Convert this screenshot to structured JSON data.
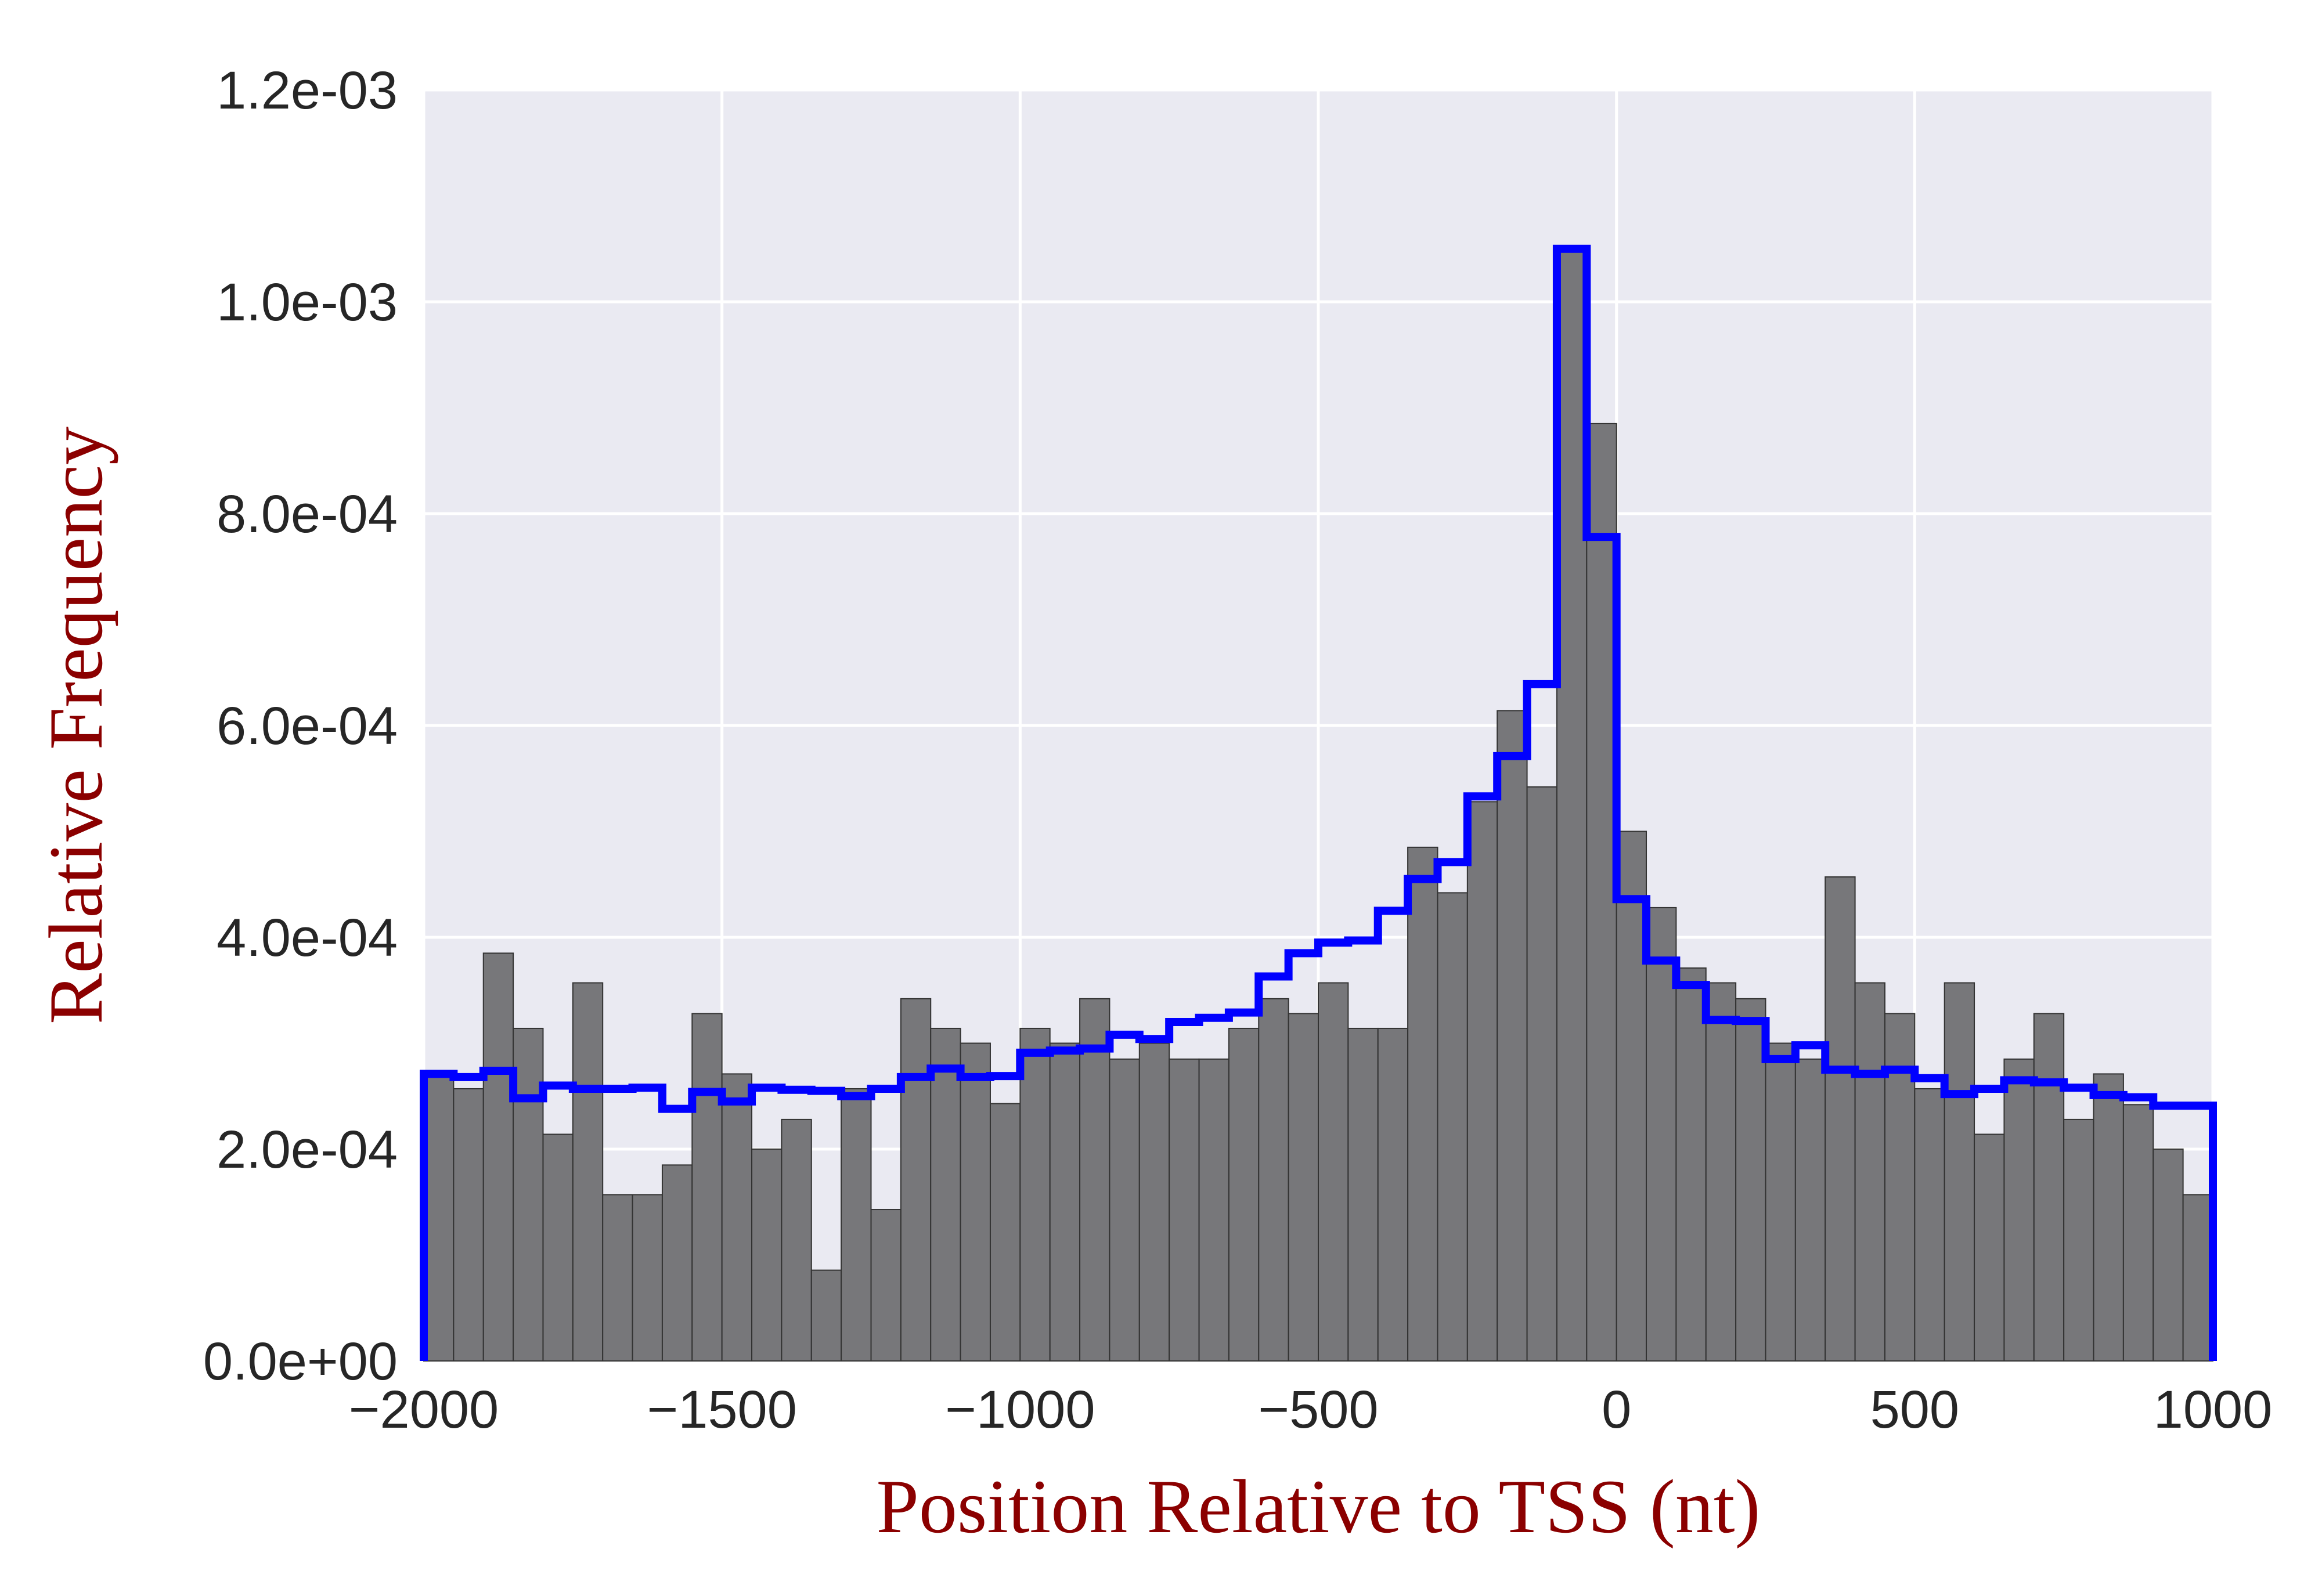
{
  "chart_data": {
    "type": "bar",
    "title": "",
    "xlabel": "Position Relative to TSS (nt)",
    "ylabel": "Relative Frequency",
    "xlim": [
      -2000,
      1000
    ],
    "ylim": [
      0,
      0.0012
    ],
    "grid": true,
    "x_ticks": [
      {
        "value": -2000,
        "label": "−2000"
      },
      {
        "value": -1500,
        "label": "−1500"
      },
      {
        "value": -1000,
        "label": "−1000"
      },
      {
        "value": -500,
        "label": "−500"
      },
      {
        "value": 0,
        "label": "0"
      },
      {
        "value": 500,
        "label": "500"
      },
      {
        "value": 1000,
        "label": "1000"
      }
    ],
    "y_ticks": [
      {
        "value": 0.0,
        "label": "0.0e+00"
      },
      {
        "value": 0.0002,
        "label": "2.0e-04"
      },
      {
        "value": 0.0004,
        "label": "4.0e-04"
      },
      {
        "value": 0.0006,
        "label": "6.0e-04"
      },
      {
        "value": 0.0008,
        "label": "8.0e-04"
      },
      {
        "value": 0.001,
        "label": "1.0e-03"
      },
      {
        "value": 0.0012,
        "label": "1.2e-03"
      }
    ],
    "bin_width": 50,
    "series": [
      {
        "style": "histogram-bars",
        "color": "#77777a",
        "x_start": [
          -2000,
          -1950,
          -1900,
          -1850,
          -1800,
          -1750,
          -1700,
          -1650,
          -1600,
          -1550,
          -1500,
          -1450,
          -1400,
          -1350,
          -1300,
          -1250,
          -1200,
          -1150,
          -1100,
          -1050,
          -1000,
          -950,
          -900,
          -850,
          -800,
          -750,
          -700,
          -650,
          -600,
          -550,
          -500,
          -450,
          -400,
          -350,
          -300,
          -250,
          -200,
          -150,
          -100,
          -50,
          0,
          50,
          100,
          150,
          200,
          250,
          300,
          350,
          400,
          450,
          500,
          550,
          600,
          650,
          700,
          750,
          800,
          850,
          900,
          950
        ],
        "values": [
          0.000271,
          0.000257,
          0.000385,
          0.000314,
          0.000214,
          0.000357,
          0.000157,
          0.000157,
          0.000185,
          0.000328,
          0.000271,
          0.0002,
          0.000228,
          8.57e-05,
          0.000257,
          0.000143,
          0.000342,
          0.000314,
          0.0003,
          0.000243,
          0.000314,
          0.0003,
          0.000342,
          0.000285,
          0.0003,
          0.000285,
          0.000285,
          0.000314,
          0.000342,
          0.000328,
          0.000357,
          0.000314,
          0.000314,
          0.000485,
          0.000442,
          0.000528,
          0.000614,
          0.000542,
          0.00105,
          0.000885,
          0.0005,
          0.000428,
          0.000371,
          0.000357,
          0.000342,
          0.0003,
          0.000285,
          0.000457,
          0.000357,
          0.000328,
          0.000257,
          0.000357,
          0.000214,
          0.000285,
          0.000328,
          0.000228,
          0.000271,
          0.000242,
          0.0002,
          0.000157
        ]
      },
      {
        "style": "step-outline",
        "color": "#0000ff",
        "x_start": [
          -2000,
          -1950,
          -1900,
          -1850,
          -1800,
          -1750,
          -1700,
          -1650,
          -1600,
          -1550,
          -1500,
          -1450,
          -1400,
          -1350,
          -1300,
          -1250,
          -1200,
          -1150,
          -1100,
          -1050,
          -1000,
          -950,
          -900,
          -850,
          -800,
          -750,
          -700,
          -650,
          -600,
          -550,
          -500,
          -450,
          -400,
          -350,
          -300,
          -250,
          -200,
          -150,
          -100,
          -50,
          0,
          50,
          100,
          150,
          200,
          250,
          300,
          350,
          400,
          450,
          500,
          550,
          600,
          650,
          700,
          750,
          800,
          850,
          900,
          950
        ],
        "values": [
          0.000271,
          0.000268,
          0.000274,
          0.000248,
          0.00026,
          0.000257,
          0.000257,
          0.000258,
          0.000238,
          0.000254,
          0.000245,
          0.000258,
          0.000256,
          0.000255,
          0.00025,
          0.000257,
          0.000268,
          0.000276,
          0.000268,
          0.000269,
          0.000291,
          0.000293,
          0.000295,
          0.000308,
          0.000304,
          0.00032,
          0.000324,
          0.000329,
          0.000363,
          0.000385,
          0.000395,
          0.000397,
          0.000425,
          0.000455,
          0.000471,
          0.000533,
          0.000571,
          0.000639,
          0.00105,
          0.000778,
          0.000436,
          0.000378,
          0.000355,
          0.000322,
          0.000321,
          0.000285,
          0.000298,
          0.000275,
          0.000271,
          0.000275,
          0.000267,
          0.000252,
          0.000257,
          0.000265,
          0.000263,
          0.000258,
          0.000251,
          0.000249,
          0.000241,
          0.000241
        ]
      }
    ]
  }
}
